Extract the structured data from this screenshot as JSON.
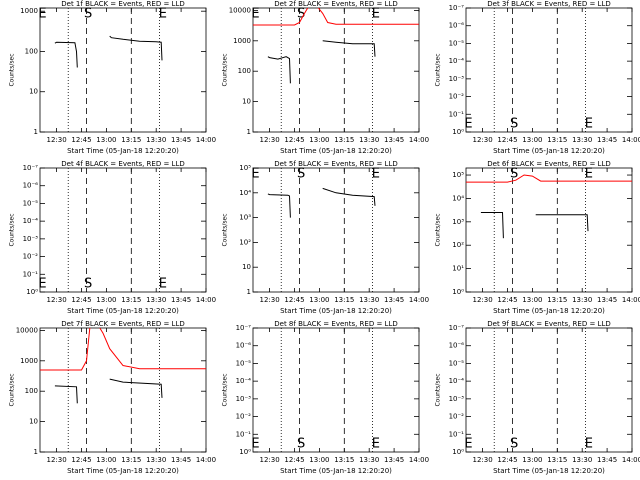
{
  "chart_data": [
    {
      "type": "line",
      "title": "Det 1f BLACK = Events, RED = LLD",
      "xlabel": "Start Time (05-Jan-18 12:20:20)",
      "ylabel": "Counts/sec",
      "log": true,
      "xlim": [
        20,
        120
      ],
      "xticks": [
        {
          "value": 30,
          "label": "12:30"
        },
        {
          "value": 45,
          "label": "12:45"
        },
        {
          "value": 60,
          "label": "13:00"
        },
        {
          "value": 75,
          "label": "13:15"
        },
        {
          "value": 90,
          "label": "13:30"
        },
        {
          "value": 105,
          "label": "13:45"
        },
        {
          "value": 120,
          "label": "14:00"
        }
      ],
      "ylim": [
        1,
        1200
      ],
      "yticks": [
        1,
        10,
        100,
        1000
      ],
      "series": [
        {
          "color": "#000000",
          "x": [
            29,
            30,
            41,
            42,
            42.5,
            null,
            62,
            63,
            70,
            80,
            90,
            93,
            93.5
          ],
          "values": [
            160,
            170,
            165,
            100,
            40,
            null,
            240,
            220,
            200,
            180,
            175,
            170,
            60
          ]
        }
      ],
      "vlines": [
        {
          "x": 37,
          "style": "dotted"
        },
        {
          "x": 48,
          "style": "dashed"
        },
        {
          "x": 75,
          "style": "dashed"
        },
        {
          "x": 92,
          "style": "dotted"
        }
      ],
      "annotations": [
        {
          "text": "E",
          "x": 21.5,
          "anchor": "top"
        },
        {
          "text": "S",
          "x": 49,
          "anchor": "top"
        },
        {
          "text": "E",
          "x": 94,
          "anchor": "top"
        }
      ]
    },
    {
      "type": "line",
      "title": "Det 2f BLACK = Events, RED = LLD",
      "xlabel": "Start Time (05-Jan-18 12:20:20)",
      "ylabel": "Counts/sec",
      "log": true,
      "xlim": [
        20,
        120
      ],
      "xticks": [
        {
          "value": 30,
          "label": "12:30"
        },
        {
          "value": 45,
          "label": "12:45"
        },
        {
          "value": 60,
          "label": "13:00"
        },
        {
          "value": 75,
          "label": "13:15"
        },
        {
          "value": 90,
          "label": "13:30"
        },
        {
          "value": 105,
          "label": "13:45"
        },
        {
          "value": 120,
          "label": "14:00"
        }
      ],
      "ylim": [
        1,
        12000
      ],
      "yticks": [
        1,
        10,
        100,
        1000,
        10000
      ],
      "series": [
        {
          "color": "#ff0000",
          "x": [
            20,
            45,
            48,
            51,
            54,
            58,
            62,
            65,
            70,
            120
          ],
          "values": [
            3300,
            3300,
            4000,
            8000,
            15000,
            15000,
            8000,
            4000,
            3500,
            3500
          ]
        },
        {
          "color": "#000000",
          "x": [
            29,
            30,
            35,
            40,
            42,
            42.5,
            null,
            62,
            70,
            80,
            93,
            93.5
          ],
          "values": [
            300,
            280,
            250,
            300,
            260,
            40,
            null,
            1000,
            900,
            800,
            800,
            300
          ]
        }
      ],
      "vlines": [
        {
          "x": 37,
          "style": "dotted"
        },
        {
          "x": 48,
          "style": "dashed"
        },
        {
          "x": 75,
          "style": "dashed"
        },
        {
          "x": 92,
          "style": "dotted"
        }
      ],
      "annotations": [
        {
          "text": "E",
          "x": 21.5,
          "anchor": "top"
        },
        {
          "text": "S",
          "x": 49,
          "anchor": "top"
        },
        {
          "text": "E",
          "x": 94,
          "anchor": "top"
        }
      ]
    },
    {
      "type": "line",
      "title": "Det 3f BLACK = Events, RED = LLD",
      "xlabel": "Start Time (05-Jan-18 12:20:20)",
      "ylabel": "Counts/sec",
      "log": false,
      "xlim": [
        20,
        120
      ],
      "xticks": [
        {
          "value": 30,
          "label": "12:30"
        },
        {
          "value": 45,
          "label": "12:45"
        },
        {
          "value": 60,
          "label": "13:00"
        },
        {
          "value": 75,
          "label": "13:15"
        },
        {
          "value": 90,
          "label": "13:30"
        },
        {
          "value": 105,
          "label": "13:45"
        },
        {
          "value": 120,
          "label": "14:00"
        }
      ],
      "ylim": [
        0,
        7
      ],
      "yticks": [
        {
          "value": 0,
          "label": "10⁰"
        },
        {
          "value": 1,
          "label": "10⁻¹"
        },
        {
          "value": 2,
          "label": "10⁻²"
        },
        {
          "value": 3,
          "label": "10⁻³"
        },
        {
          "value": 4,
          "label": "10⁻⁴"
        },
        {
          "value": 5,
          "label": "10⁻⁵"
        },
        {
          "value": 6,
          "label": "10⁻⁶"
        },
        {
          "value": 7,
          "label": "10⁻⁷"
        }
      ],
      "series": [],
      "vlines": [
        {
          "x": 37,
          "style": "dotted"
        },
        {
          "x": 48,
          "style": "dashed"
        },
        {
          "x": 75,
          "style": "dashed"
        },
        {
          "x": 92,
          "style": "dotted"
        }
      ],
      "annotations": [
        {
          "text": "E",
          "x": 21.5,
          "anchor": "bottom"
        },
        {
          "text": "S",
          "x": 49,
          "anchor": "bottom"
        },
        {
          "text": "E",
          "x": 94,
          "anchor": "bottom"
        }
      ]
    },
    {
      "type": "line",
      "title": "Det 4f BLACK = Events, RED = LLD",
      "xlabel": "Start Time (05-Jan-18 12:20:20)",
      "ylabel": "Counts/sec",
      "log": false,
      "xlim": [
        20,
        120
      ],
      "xticks": [
        {
          "value": 30,
          "label": "12:30"
        },
        {
          "value": 45,
          "label": "12:45"
        },
        {
          "value": 60,
          "label": "13:00"
        },
        {
          "value": 75,
          "label": "13:15"
        },
        {
          "value": 90,
          "label": "13:30"
        },
        {
          "value": 105,
          "label": "13:45"
        },
        {
          "value": 120,
          "label": "14:00"
        }
      ],
      "ylim": [
        0,
        7
      ],
      "yticks": [
        {
          "value": 0,
          "label": "10⁰"
        },
        {
          "value": 1,
          "label": "10⁻¹"
        },
        {
          "value": 2,
          "label": "10⁻²"
        },
        {
          "value": 3,
          "label": "10⁻³"
        },
        {
          "value": 4,
          "label": "10⁻⁴"
        },
        {
          "value": 5,
          "label": "10⁻⁵"
        },
        {
          "value": 6,
          "label": "10⁻⁶"
        },
        {
          "value": 7,
          "label": "10⁻⁷"
        }
      ],
      "series": [],
      "vlines": [
        {
          "x": 37,
          "style": "dotted"
        },
        {
          "x": 48,
          "style": "dashed"
        },
        {
          "x": 75,
          "style": "dashed"
        },
        {
          "x": 92,
          "style": "dotted"
        }
      ],
      "annotations": [
        {
          "text": "E",
          "x": 21.5,
          "anchor": "bottom"
        },
        {
          "text": "S",
          "x": 49,
          "anchor": "bottom"
        },
        {
          "text": "E",
          "x": 94,
          "anchor": "bottom"
        }
      ]
    },
    {
      "type": "line",
      "title": "Det 5f BLACK = Events, RED = LLD",
      "xlabel": "Start Time (05-Jan-18 12:20:20)",
      "ylabel": "Counts/sec",
      "log": true,
      "xlim": [
        20,
        120
      ],
      "xticks": [
        {
          "value": 30,
          "label": "12:30"
        },
        {
          "value": 45,
          "label": "12:45"
        },
        {
          "value": 60,
          "label": "13:00"
        },
        {
          "value": 75,
          "label": "13:15"
        },
        {
          "value": 90,
          "label": "13:30"
        },
        {
          "value": 105,
          "label": "13:45"
        },
        {
          "value": 120,
          "label": "14:00"
        }
      ],
      "ylim": [
        1,
        100000
      ],
      "yticks": [
        1,
        10,
        {
          "value": 100,
          "label": "10²"
        },
        {
          "value": 1000,
          "label": "10³"
        },
        {
          "value": 10000,
          "label": "10⁴"
        },
        {
          "value": 100000,
          "label": "10⁵"
        }
      ],
      "series": [
        {
          "color": "#000000",
          "x": [
            29,
            30,
            41,
            42,
            42.5,
            null,
            62,
            70,
            80,
            93,
            93.5
          ],
          "values": [
            9000,
            8500,
            8000,
            7500,
            1000,
            null,
            15000,
            10000,
            8000,
            7000,
            3000
          ]
        }
      ],
      "vlines": [
        {
          "x": 37,
          "style": "dotted"
        },
        {
          "x": 48,
          "style": "dashed"
        },
        {
          "x": 75,
          "style": "dashed"
        },
        {
          "x": 92,
          "style": "dotted"
        }
      ],
      "annotations": [
        {
          "text": "E",
          "x": 21.5,
          "anchor": "top"
        },
        {
          "text": "S",
          "x": 49,
          "anchor": "top"
        },
        {
          "text": "E",
          "x": 94,
          "anchor": "top"
        }
      ]
    },
    {
      "type": "line",
      "title": "Det 6f BLACK = Events, RED = LLD",
      "xlabel": "Start Time (05-Jan-18 12:20:20)",
      "ylabel": "Counts/sec",
      "log": true,
      "xlim": [
        20,
        120
      ],
      "xticks": [
        {
          "value": 30,
          "label": "12:30"
        },
        {
          "value": 45,
          "label": "12:45"
        },
        {
          "value": 60,
          "label": "13:00"
        },
        {
          "value": 75,
          "label": "13:15"
        },
        {
          "value": 90,
          "label": "13:30"
        },
        {
          "value": 105,
          "label": "13:45"
        },
        {
          "value": 120,
          "label": "14:00"
        }
      ],
      "ylim": [
        1,
        200000
      ],
      "yticks": [
        {
          "value": 1,
          "label": "10⁰"
        },
        {
          "value": 10,
          "label": "10¹"
        },
        {
          "value": 100,
          "label": "10²"
        },
        {
          "value": 1000,
          "label": "10³"
        },
        {
          "value": 10000,
          "label": "10⁴"
        },
        {
          "value": 100000,
          "label": "10⁵"
        }
      ],
      "series": [
        {
          "color": "#ff0000",
          "x": [
            20,
            45,
            50,
            55,
            60,
            65,
            120
          ],
          "values": [
            50000,
            50000,
            60000,
            100000,
            90000,
            55000,
            55000
          ]
        },
        {
          "color": "#000000",
          "x": [
            29,
            42,
            42.5,
            null,
            62,
            93,
            93.5
          ],
          "values": [
            2500,
            2500,
            200,
            null,
            2000,
            2000,
            400
          ]
        }
      ],
      "vlines": [
        {
          "x": 37,
          "style": "dotted"
        },
        {
          "x": 48,
          "style": "dashed"
        },
        {
          "x": 75,
          "style": "dashed"
        },
        {
          "x": 92,
          "style": "dotted"
        }
      ],
      "annotations": [
        {
          "text": "S",
          "x": 49,
          "anchor": "top"
        },
        {
          "text": "E",
          "x": 94,
          "anchor": "top"
        }
      ]
    },
    {
      "type": "line",
      "title": "Det 7f BLACK = Events, RED = LLD",
      "xlabel": "Start Time (05-Jan-18 12:20:20)",
      "ylabel": "Counts/sec",
      "log": true,
      "xlim": [
        20,
        120
      ],
      "xticks": [
        {
          "value": 30,
          "label": "12:30"
        },
        {
          "value": 45,
          "label": "12:45"
        },
        {
          "value": 60,
          "label": "13:00"
        },
        {
          "value": 75,
          "label": "13:15"
        },
        {
          "value": 90,
          "label": "13:30"
        },
        {
          "value": 105,
          "label": "13:45"
        },
        {
          "value": 120,
          "label": "14:00"
        }
      ],
      "ylim": [
        1,
        12000
      ],
      "yticks": [
        1,
        10,
        100,
        1000,
        10000
      ],
      "series": [
        {
          "color": "#ff0000",
          "x": [
            20,
            45,
            48,
            50,
            55,
            58,
            62,
            70,
            80,
            120
          ],
          "values": [
            500,
            500,
            1000,
            12000,
            15000,
            8000,
            2500,
            700,
            550,
            550
          ]
        },
        {
          "color": "#000000",
          "x": [
            29,
            42,
            42.5,
            null,
            62,
            70,
            93,
            93.5
          ],
          "values": [
            150,
            140,
            40,
            null,
            250,
            200,
            170,
            60
          ]
        }
      ],
      "vlines": [
        {
          "x": 37,
          "style": "dotted"
        },
        {
          "x": 48,
          "style": "dashed"
        },
        {
          "x": 75,
          "style": "dashed"
        },
        {
          "x": 92,
          "style": "dotted"
        }
      ],
      "annotations": []
    },
    {
      "type": "line",
      "title": "Det 8f BLACK = Events, RED = LLD",
      "xlabel": "Start Time (05-Jan-18 12:20:20)",
      "ylabel": "Counts/sec",
      "log": false,
      "xlim": [
        20,
        120
      ],
      "xticks": [
        {
          "value": 30,
          "label": "12:30"
        },
        {
          "value": 45,
          "label": "12:45"
        },
        {
          "value": 60,
          "label": "13:00"
        },
        {
          "value": 75,
          "label": "13:15"
        },
        {
          "value": 90,
          "label": "13:30"
        },
        {
          "value": 105,
          "label": "13:45"
        },
        {
          "value": 120,
          "label": "14:00"
        }
      ],
      "ylim": [
        0,
        7
      ],
      "yticks": [
        {
          "value": 0,
          "label": "10⁰"
        },
        {
          "value": 1,
          "label": "10⁻¹"
        },
        {
          "value": 2,
          "label": "10⁻²"
        },
        {
          "value": 3,
          "label": "10⁻³"
        },
        {
          "value": 4,
          "label": "10⁻⁴"
        },
        {
          "value": 5,
          "label": "10⁻⁵"
        },
        {
          "value": 6,
          "label": "10⁻⁶"
        },
        {
          "value": 7,
          "label": "10⁻⁷"
        }
      ],
      "series": [],
      "vlines": [
        {
          "x": 37,
          "style": "dotted"
        },
        {
          "x": 48,
          "style": "dashed"
        },
        {
          "x": 75,
          "style": "dashed"
        },
        {
          "x": 92,
          "style": "dotted"
        }
      ],
      "annotations": [
        {
          "text": "E",
          "x": 21.5,
          "anchor": "bottom"
        },
        {
          "text": "S",
          "x": 49,
          "anchor": "bottom"
        },
        {
          "text": "E",
          "x": 94,
          "anchor": "bottom"
        }
      ]
    },
    {
      "type": "line",
      "title": "Det 9f BLACK = Events, RED = LLD",
      "xlabel": "Start Time (05-Jan-18 12:20:20)",
      "ylabel": "Counts/sec",
      "log": false,
      "xlim": [
        20,
        120
      ],
      "xticks": [
        {
          "value": 30,
          "label": "12:30"
        },
        {
          "value": 45,
          "label": "12:45"
        },
        {
          "value": 60,
          "label": "13:00"
        },
        {
          "value": 75,
          "label": "13:15"
        },
        {
          "value": 90,
          "label": "13:30"
        },
        {
          "value": 105,
          "label": "13:45"
        },
        {
          "value": 120,
          "label": "14:00"
        }
      ],
      "ylim": [
        0,
        7
      ],
      "yticks": [
        {
          "value": 0,
          "label": "10⁰"
        },
        {
          "value": 1,
          "label": "10⁻¹"
        },
        {
          "value": 2,
          "label": "10⁻²"
        },
        {
          "value": 3,
          "label": "10⁻³"
        },
        {
          "value": 4,
          "label": "10⁻⁴"
        },
        {
          "value": 5,
          "label": "10⁻⁵"
        },
        {
          "value": 6,
          "label": "10⁻⁶"
        },
        {
          "value": 7,
          "label": "10⁻⁷"
        }
      ],
      "series": [],
      "vlines": [
        {
          "x": 37,
          "style": "dotted"
        },
        {
          "x": 48,
          "style": "dashed"
        },
        {
          "x": 75,
          "style": "dashed"
        },
        {
          "x": 92,
          "style": "dotted"
        }
      ],
      "annotations": [
        {
          "text": "E",
          "x": 21.5,
          "anchor": "bottom"
        },
        {
          "text": "S",
          "x": 49,
          "anchor": "bottom"
        },
        {
          "text": "E",
          "x": 94,
          "anchor": "bottom"
        }
      ]
    }
  ]
}
